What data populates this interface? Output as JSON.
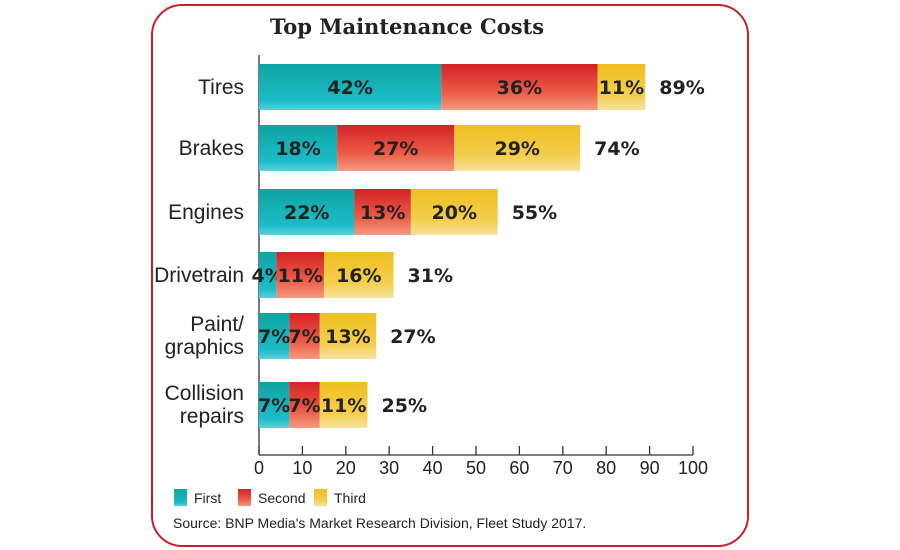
{
  "chart_data": {
    "type": "bar",
    "orientation": "horizontal",
    "stacked": true,
    "title": "Top Maintenance Costs",
    "categories": [
      [
        "Tires"
      ],
      [
        "Brakes"
      ],
      [
        "Engines"
      ],
      [
        "Drivetrain"
      ],
      [
        "Paint/",
        "graphics"
      ],
      [
        "Collision",
        "repairs"
      ]
    ],
    "series": [
      {
        "name": "First",
        "values": [
          42,
          18,
          22,
          4,
          7,
          7
        ],
        "color": "#14b0b4"
      },
      {
        "name": "Second",
        "values": [
          36,
          27,
          13,
          11,
          7,
          7
        ],
        "color": "#e03a30"
      },
      {
        "name": "Third",
        "values": [
          11,
          29,
          20,
          16,
          13,
          11
        ],
        "color": "#f2c52a"
      }
    ],
    "totals": [
      89,
      74,
      55,
      31,
      27,
      25
    ],
    "value_suffix": "%",
    "xlim": [
      0,
      100
    ],
    "xticks": [
      0,
      10,
      20,
      30,
      40,
      50,
      60,
      70,
      80,
      90,
      100
    ],
    "grid": false,
    "legend_placement": "bottom-left",
    "source": "Source: BNP Media's Market Research Division, Fleet Study 2017.",
    "frame_color": "#c8202a"
  }
}
